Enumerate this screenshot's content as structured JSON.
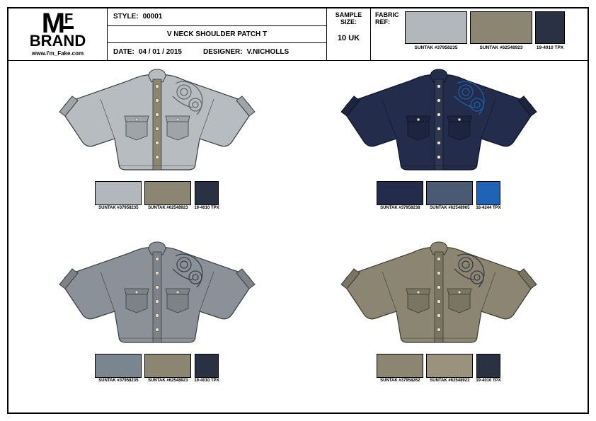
{
  "logo": {
    "m": "M",
    "f": "F",
    "brand": "BRAND",
    "url": "www.I'm_Fake.com"
  },
  "header": {
    "style_label": "STYLE:",
    "style_val": "00001",
    "name": "V NECK SHOULDER PATCH T",
    "date_label": "DATE:",
    "date_val": "04 / 01 / 2015",
    "designer_label": "DESIGNER:",
    "designer_val": "V.NICHOLLS",
    "sample_label": "SAMPLE SIZE:",
    "sample_val": "10 UK",
    "fabric_label": "FABRIC REF:"
  },
  "header_swatches": [
    {
      "color": "#b2b7bc",
      "label": "SUNTAK  #37958235"
    },
    {
      "color": "#8c8572",
      "label": "SUNTAK  #62548923"
    },
    {
      "color": "#2a3142",
      "label": "19-4010 TPX",
      "narrow": true
    }
  ],
  "variants": [
    {
      "body": "#b7bcc0",
      "pocket": "#9fa4a8",
      "placket": "#8c8572",
      "collar": "#b7bcc0",
      "decor": "#5a5f64",
      "outline": "#3a3e42",
      "swatches": [
        {
          "color": "#b2b7bc",
          "label": "SUNTAK  #37958235"
        },
        {
          "color": "#8c8572",
          "label": "SUNTAK  #62548923"
        },
        {
          "color": "#2a3142",
          "label": "19-4010 TPX",
          "narrow": true
        }
      ]
    },
    {
      "body": "#232c4a",
      "pocket": "#1c2440",
      "placket": "#2e3752",
      "collar": "#232c4a",
      "decor": "#1e63b5",
      "outline": "#0e1326",
      "swatches": [
        {
          "color": "#232c4a",
          "label": "SUNTAK  #37958238"
        },
        {
          "color": "#4a5a72",
          "label": "SUNTAK  #62548965"
        },
        {
          "color": "#1e63b5",
          "label": "18-4244 TPX",
          "narrow": true
        }
      ]
    },
    {
      "body": "#8a9198",
      "body2": "#4a6a86",
      "pocket": "#7d8288",
      "placket": "#7d8288",
      "collar": "#8a9198",
      "decor": "#2f3a46",
      "outline": "#3a3e42",
      "mottled": true,
      "swatches": [
        {
          "color": "#7a868f",
          "label": "SUNTAK  #37958235"
        },
        {
          "color": "#8c8572",
          "label": "SUNTAK  #62548923"
        },
        {
          "color": "#2a3142",
          "label": "19-4010 TPX",
          "narrow": true
        }
      ]
    },
    {
      "body": "#8c8572",
      "pocket": "#7a7462",
      "placket": "#7a7462",
      "collar": "#8c8572",
      "decor": "#2e3340",
      "outline": "#3a3a32",
      "swatches": [
        {
          "color": "#8c8572",
          "label": "SUNTAK  #37958262"
        },
        {
          "color": "#9a927c",
          "label": "SUNTAK  #62548923"
        },
        {
          "color": "#2a3142",
          "label": "19-4010 TPX",
          "narrow": true
        }
      ]
    }
  ]
}
